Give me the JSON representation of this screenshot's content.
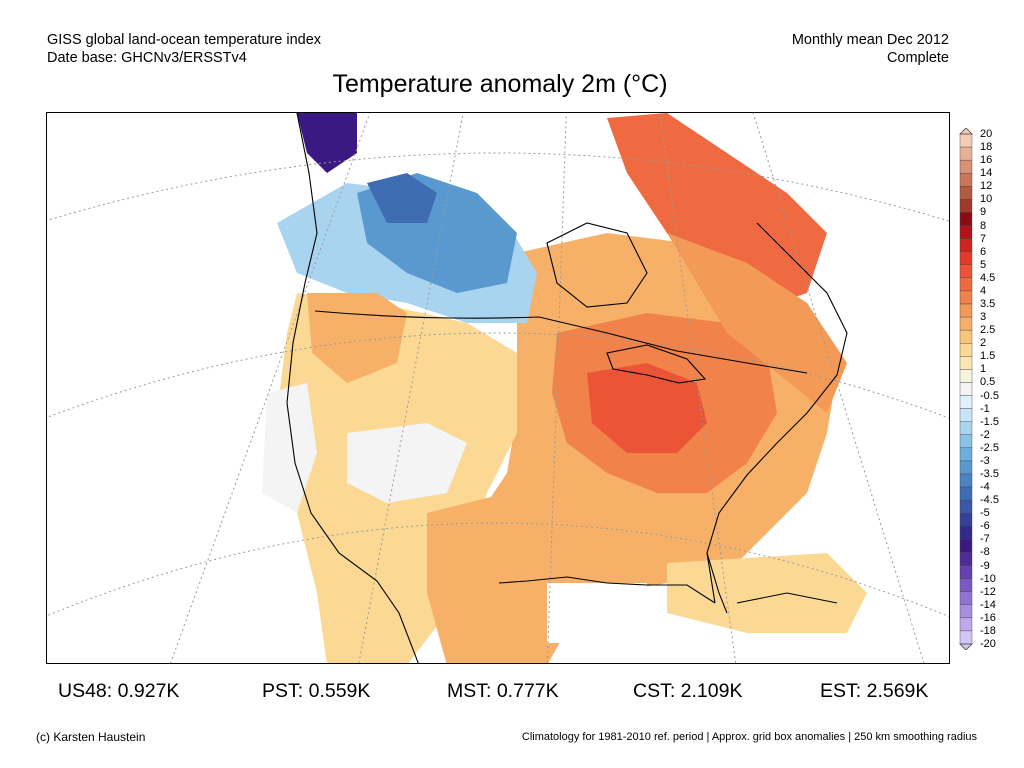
{
  "header": {
    "left_line1": "GISS global land-ocean temperature index",
    "left_line2": "Date base: GHCNv3/ERSSTv4",
    "right_line1": "Monthly mean Dec 2012",
    "right_line2": "Complete"
  },
  "title": "Temperature anomaly 2m (°C)",
  "colorbar": {
    "labels": [
      "20",
      "18",
      "16",
      "14",
      "12",
      "10",
      "9",
      "8",
      "7",
      "6",
      "5",
      "4.5",
      "4",
      "3.5",
      "3",
      "2.5",
      "2",
      "1.5",
      "1",
      "0.5",
      "-0.5",
      "-1",
      "-1.5",
      "-2",
      "-2.5",
      "-3",
      "-3.5",
      "-4",
      "-4.5",
      "-5",
      "-6",
      "-7",
      "-8",
      "-9",
      "-10",
      "-12",
      "-14",
      "-16",
      "-18",
      "-20"
    ],
    "colors": [
      "#f5cdb4",
      "#e8b095",
      "#d99275",
      "#c97758",
      "#b35b42",
      "#a03a2c",
      "#8a0b16",
      "#b01318",
      "#cf2420",
      "#e33a2b",
      "#ec5438",
      "#ef6a40",
      "#f1824a",
      "#f49a57",
      "#f6b068",
      "#f8c57d",
      "#fbd994",
      "#fbe8b0",
      "#f7f3dc",
      "#f4f4f4",
      "#e1f1fb",
      "#c8e5f7",
      "#a9d4ef",
      "#8ac2e6",
      "#6fafdb",
      "#5a99cf",
      "#4a83c2",
      "#3f6db4",
      "#3a58a6",
      "#354098",
      "#322a8a",
      "#3a1a82",
      "#4f2a99",
      "#6540b0",
      "#7a5ac2",
      "#9074d2",
      "#a68fe0",
      "#bda9ec",
      "#d3c5f5"
    ]
  },
  "stats": [
    {
      "label": "US48: 0.927K"
    },
    {
      "label": "PST: 0.559K"
    },
    {
      "label": "MST: 0.777K"
    },
    {
      "label": "CST: 2.109K"
    },
    {
      "label": "EST: 2.569K"
    }
  ],
  "footer": {
    "left": "(c) Karsten Haustein",
    "right": "Climatology for 1981-2010 ref. period | Approx. grid box anomalies | 250 km smoothing radius"
  }
}
